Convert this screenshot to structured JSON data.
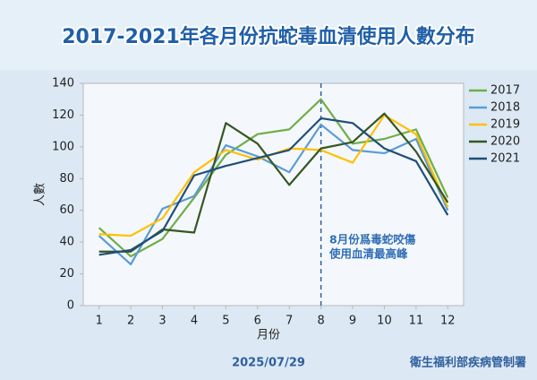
{
  "chart_data": {
    "type": "line",
    "title": "2017-2021年各月份抗蛇毒血清使用人數分布",
    "x_label": "月份",
    "y_label": "人數",
    "x": [
      1,
      2,
      3,
      4,
      5,
      6,
      7,
      8,
      9,
      10,
      11,
      12
    ],
    "series": [
      {
        "name": "2017",
        "color": "#70ad47",
        "values": [
          49,
          31,
          42,
          68,
          95,
          108,
          111,
          130,
          102,
          105,
          111,
          68
        ]
      },
      {
        "name": "2018",
        "color": "#5b9bd5",
        "values": [
          44,
          26,
          61,
          69,
          101,
          94,
          84,
          114,
          98,
          96,
          105,
          60
        ]
      },
      {
        "name": "2019",
        "color": "#ffc000",
        "values": [
          45,
          44,
          55,
          84,
          98,
          92,
          99,
          98,
          90,
          120,
          108,
          62
        ]
      },
      {
        "name": "2020",
        "color": "#375623",
        "values": [
          34,
          34,
          48,
          46,
          115,
          102,
          76,
          99,
          103,
          121,
          97,
          65
        ]
      },
      {
        "name": "2021",
        "color": "#1f4e79",
        "values": [
          32,
          35,
          47,
          82,
          88,
          93,
          98,
          118,
          115,
          99,
          91,
          57
        ]
      }
    ],
    "xlim": [
      0.5,
      12.5
    ],
    "xticks": [
      1,
      2,
      3,
      4,
      5,
      6,
      7,
      8,
      9,
      10,
      11,
      12
    ],
    "ylim": [
      0,
      140
    ],
    "yticks": [
      0,
      20,
      40,
      60,
      80,
      100,
      120,
      140
    ],
    "grid": false,
    "legend": "right",
    "vline_x": 8,
    "annotation": [
      "8月份爲毒蛇咬傷",
      "使用血清最高峰"
    ],
    "date": "2025/07/29",
    "source": "衛生福利部疾病管制署"
  }
}
